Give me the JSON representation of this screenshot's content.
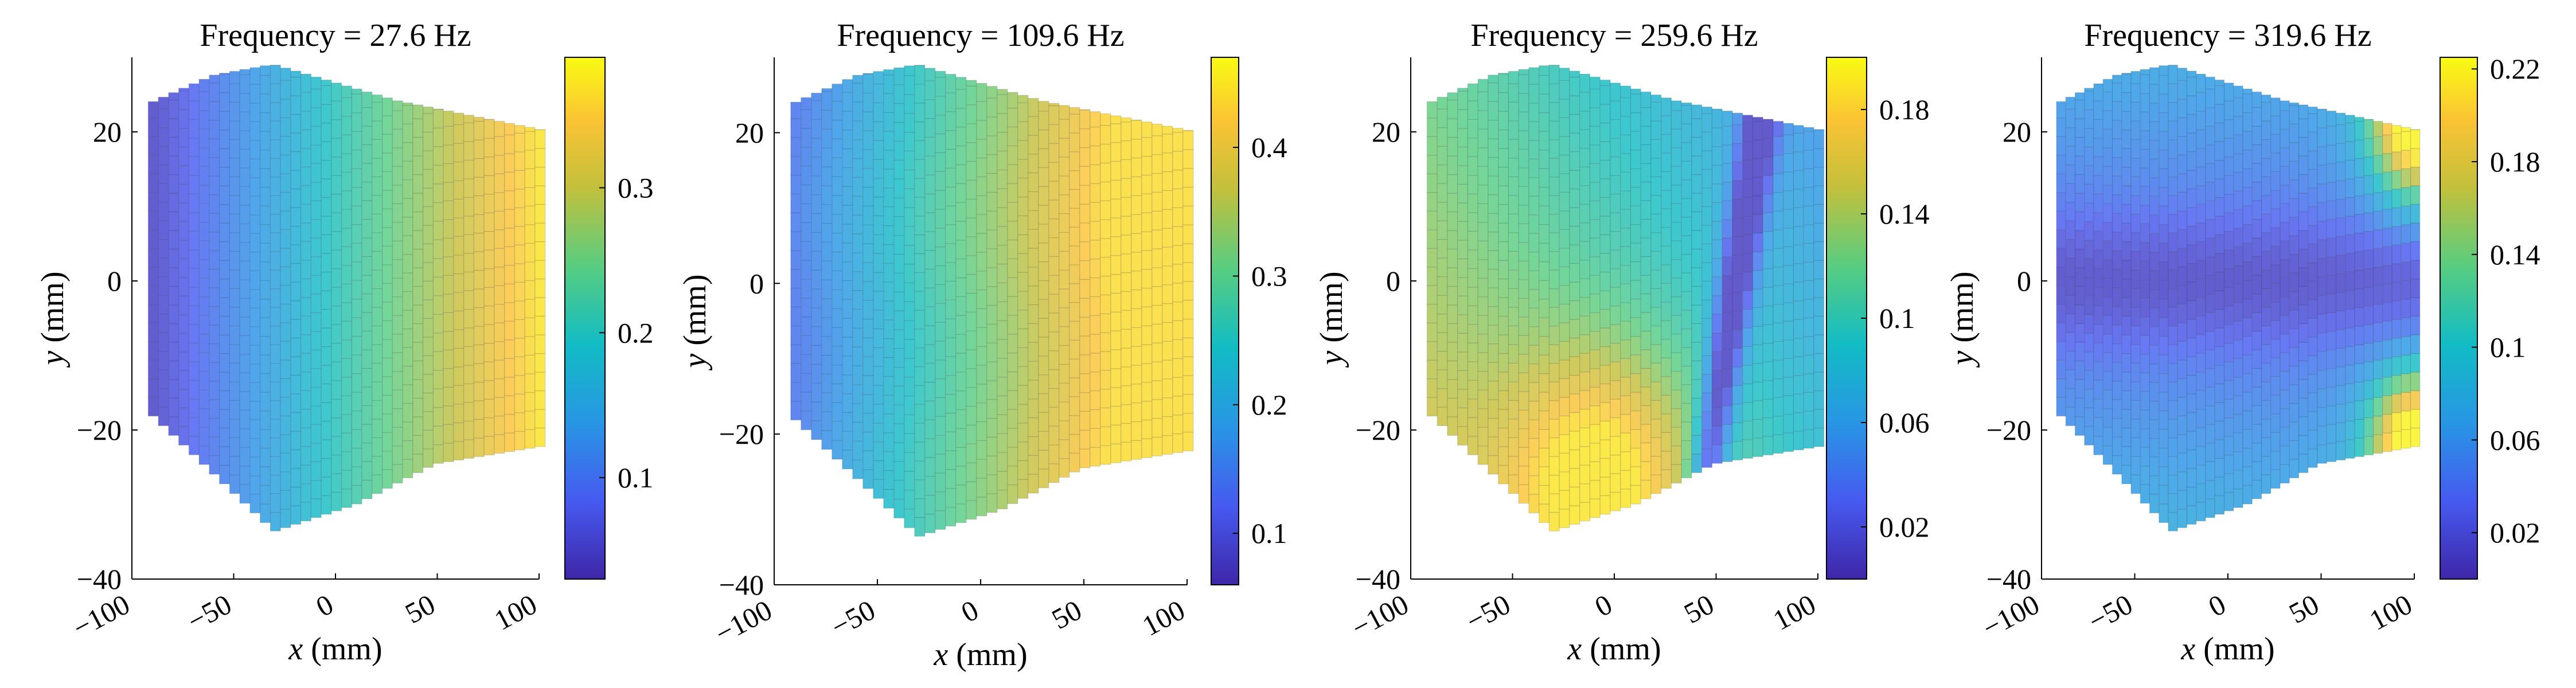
{
  "figure": {
    "type": "surface-maps",
    "colormap": "parula"
  },
  "chart_data": [
    {
      "type": "heatmap",
      "title": "Frequency = 27.6 Hz",
      "xlabel_var": "x",
      "xlabel_unit": "(mm)",
      "ylabel_var": "y",
      "ylabel_unit": "(mm)",
      "xlim": [
        -100,
        100
      ],
      "ylim": [
        -40,
        30
      ],
      "x_ticks": [
        "−100",
        "−50",
        "0",
        "50",
        "100"
      ],
      "x_tick_values": [
        -100,
        -50,
        0,
        50,
        100
      ],
      "y_ticks": [
        "20",
        "0",
        "−20",
        "−40"
      ],
      "y_tick_values": [
        20,
        0,
        -20,
        -40
      ],
      "colorbar": {
        "range": [
          0.03,
          0.39
        ],
        "ticks": [
          "0.3",
          "0.2",
          "0.1"
        ],
        "tick_values": [
          0.3,
          0.2,
          0.1
        ]
      },
      "field": {
        "pattern": "gradient_x",
        "x_min": -90,
        "x_max": 100,
        "v_min": 0.05,
        "v_max": 0.37
      }
    },
    {
      "type": "heatmap",
      "title": "Frequency = 109.6 Hz",
      "xlabel_var": "x",
      "xlabel_unit": "(mm)",
      "ylabel_var": "y",
      "ylabel_unit": "(mm)",
      "xlim": [
        -100,
        100
      ],
      "ylim": [
        -40,
        30
      ],
      "x_ticks": [
        "−100",
        "−50",
        "0",
        "50",
        "100"
      ],
      "x_tick_values": [
        -100,
        -50,
        0,
        50,
        100
      ],
      "y_ticks": [
        "20",
        "0",
        "−20",
        "−40"
      ],
      "y_tick_values": [
        20,
        0,
        -20,
        -40
      ],
      "colorbar": {
        "range": [
          0.06,
          0.47
        ],
        "ticks": [
          "0.4",
          "0.3",
          "0.2",
          "0.1"
        ],
        "tick_values": [
          0.4,
          0.3,
          0.2,
          0.1
        ]
      },
      "field": {
        "pattern": "gradient_x_sat",
        "x_min": -90,
        "x_max": 100,
        "v_min": 0.14,
        "v_max": 0.44
      }
    },
    {
      "type": "heatmap",
      "title": "Frequency = 259.6 Hz",
      "xlabel_var": "x",
      "xlabel_unit": "(mm)",
      "ylabel_var": "y",
      "ylabel_unit": "(mm)",
      "xlim": [
        -100,
        100
      ],
      "ylim": [
        -40,
        30
      ],
      "x_ticks": [
        "−100",
        "−50",
        "0",
        "50",
        "100"
      ],
      "x_tick_values": [
        -100,
        -50,
        0,
        50,
        100
      ],
      "y_ticks": [
        "20",
        "0",
        "−20",
        "−40"
      ],
      "y_tick_values": [
        20,
        0,
        -20,
        -40
      ],
      "colorbar": {
        "range": [
          0.0,
          0.2
        ],
        "ticks": [
          "0.18",
          "0.14",
          "0.1",
          "0.06",
          "0.02"
        ],
        "tick_values": [
          0.18,
          0.14,
          0.1,
          0.06,
          0.02
        ]
      },
      "field": {
        "pattern": "mode_diagonal",
        "v_min": 0.01,
        "v_max": 0.19
      }
    },
    {
      "type": "heatmap",
      "title": "Frequency = 319.6 Hz",
      "xlabel_var": "x",
      "xlabel_unit": "(mm)",
      "ylabel_var": "y",
      "ylabel_unit": "(mm)",
      "xlim": [
        -100,
        100
      ],
      "ylim": [
        -40,
        30
      ],
      "x_ticks": [
        "−100",
        "−50",
        "0",
        "50",
        "100"
      ],
      "x_tick_values": [
        -100,
        -50,
        0,
        50,
        100
      ],
      "y_ticks": [
        "20",
        "0",
        "−20",
        "−40"
      ],
      "y_tick_values": [
        20,
        0,
        -20,
        -40
      ],
      "colorbar": {
        "range": [
          0.0,
          0.225
        ],
        "ticks": [
          "0.22",
          "0.18",
          "0.14",
          "0.1",
          "0.06",
          "0.02"
        ],
        "tick_values": [
          0.22,
          0.18,
          0.14,
          0.1,
          0.06,
          0.02
        ]
      },
      "field": {
        "pattern": "mode_corners",
        "v_min": 0.005,
        "v_max": 0.22
      }
    }
  ]
}
